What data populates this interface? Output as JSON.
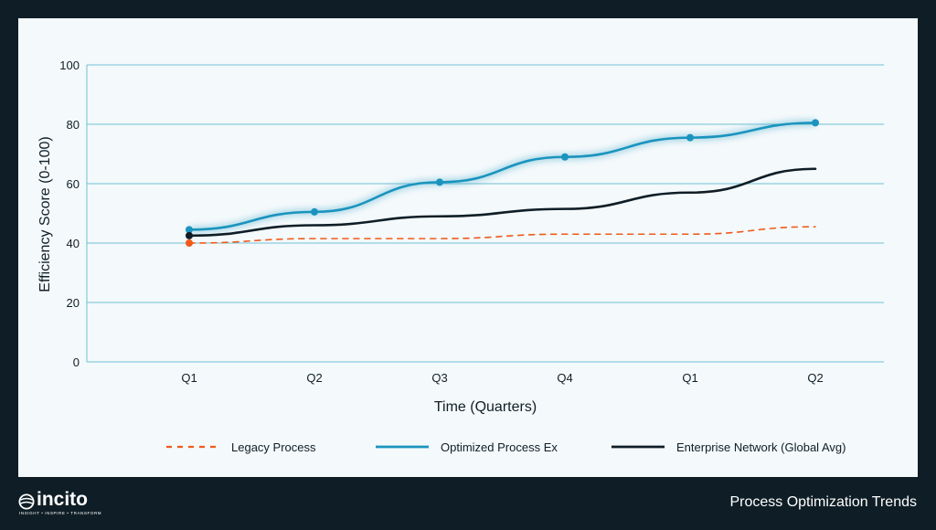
{
  "chart_data": {
    "type": "line",
    "title": "",
    "xlabel": "Time (Quarters)",
    "ylabel": "Efficiency Score (0-100)",
    "categories": [
      "Q1",
      "Q2",
      "Q3",
      "Q4",
      "Q1",
      "Q2"
    ],
    "ylim": [
      0,
      100
    ],
    "yticks": [
      0,
      20,
      40,
      60,
      80,
      100
    ],
    "grid": true,
    "legend_position": "bottom",
    "series": [
      {
        "name": "Legacy Process",
        "values": [
          40,
          41.5,
          41.5,
          43,
          43,
          45.5
        ],
        "color": "#f05a1a",
        "style": "dashed",
        "markers": "first"
      },
      {
        "name": "Optimized Process Ex",
        "values": [
          44.5,
          50.5,
          60.5,
          69,
          75.5,
          80.5
        ],
        "color": "#1a94be",
        "style": "solid-glow",
        "markers": "all"
      },
      {
        "name": "Enterprise Network (Global Avg)",
        "values": [
          42.5,
          46,
          49,
          51.5,
          57,
          65
        ],
        "color": "#0f1e26",
        "style": "solid",
        "markers": "first"
      }
    ]
  },
  "footer": {
    "brand": "incito",
    "tagline": "INSIGHT • INSPIRE • TRANSFORM",
    "title": "Process Optimization Trends"
  },
  "colors": {
    "background": "#0f1e26",
    "panel": "#f4f9fb",
    "gridline": "#6fc1d4",
    "text": "#0f1e26"
  }
}
